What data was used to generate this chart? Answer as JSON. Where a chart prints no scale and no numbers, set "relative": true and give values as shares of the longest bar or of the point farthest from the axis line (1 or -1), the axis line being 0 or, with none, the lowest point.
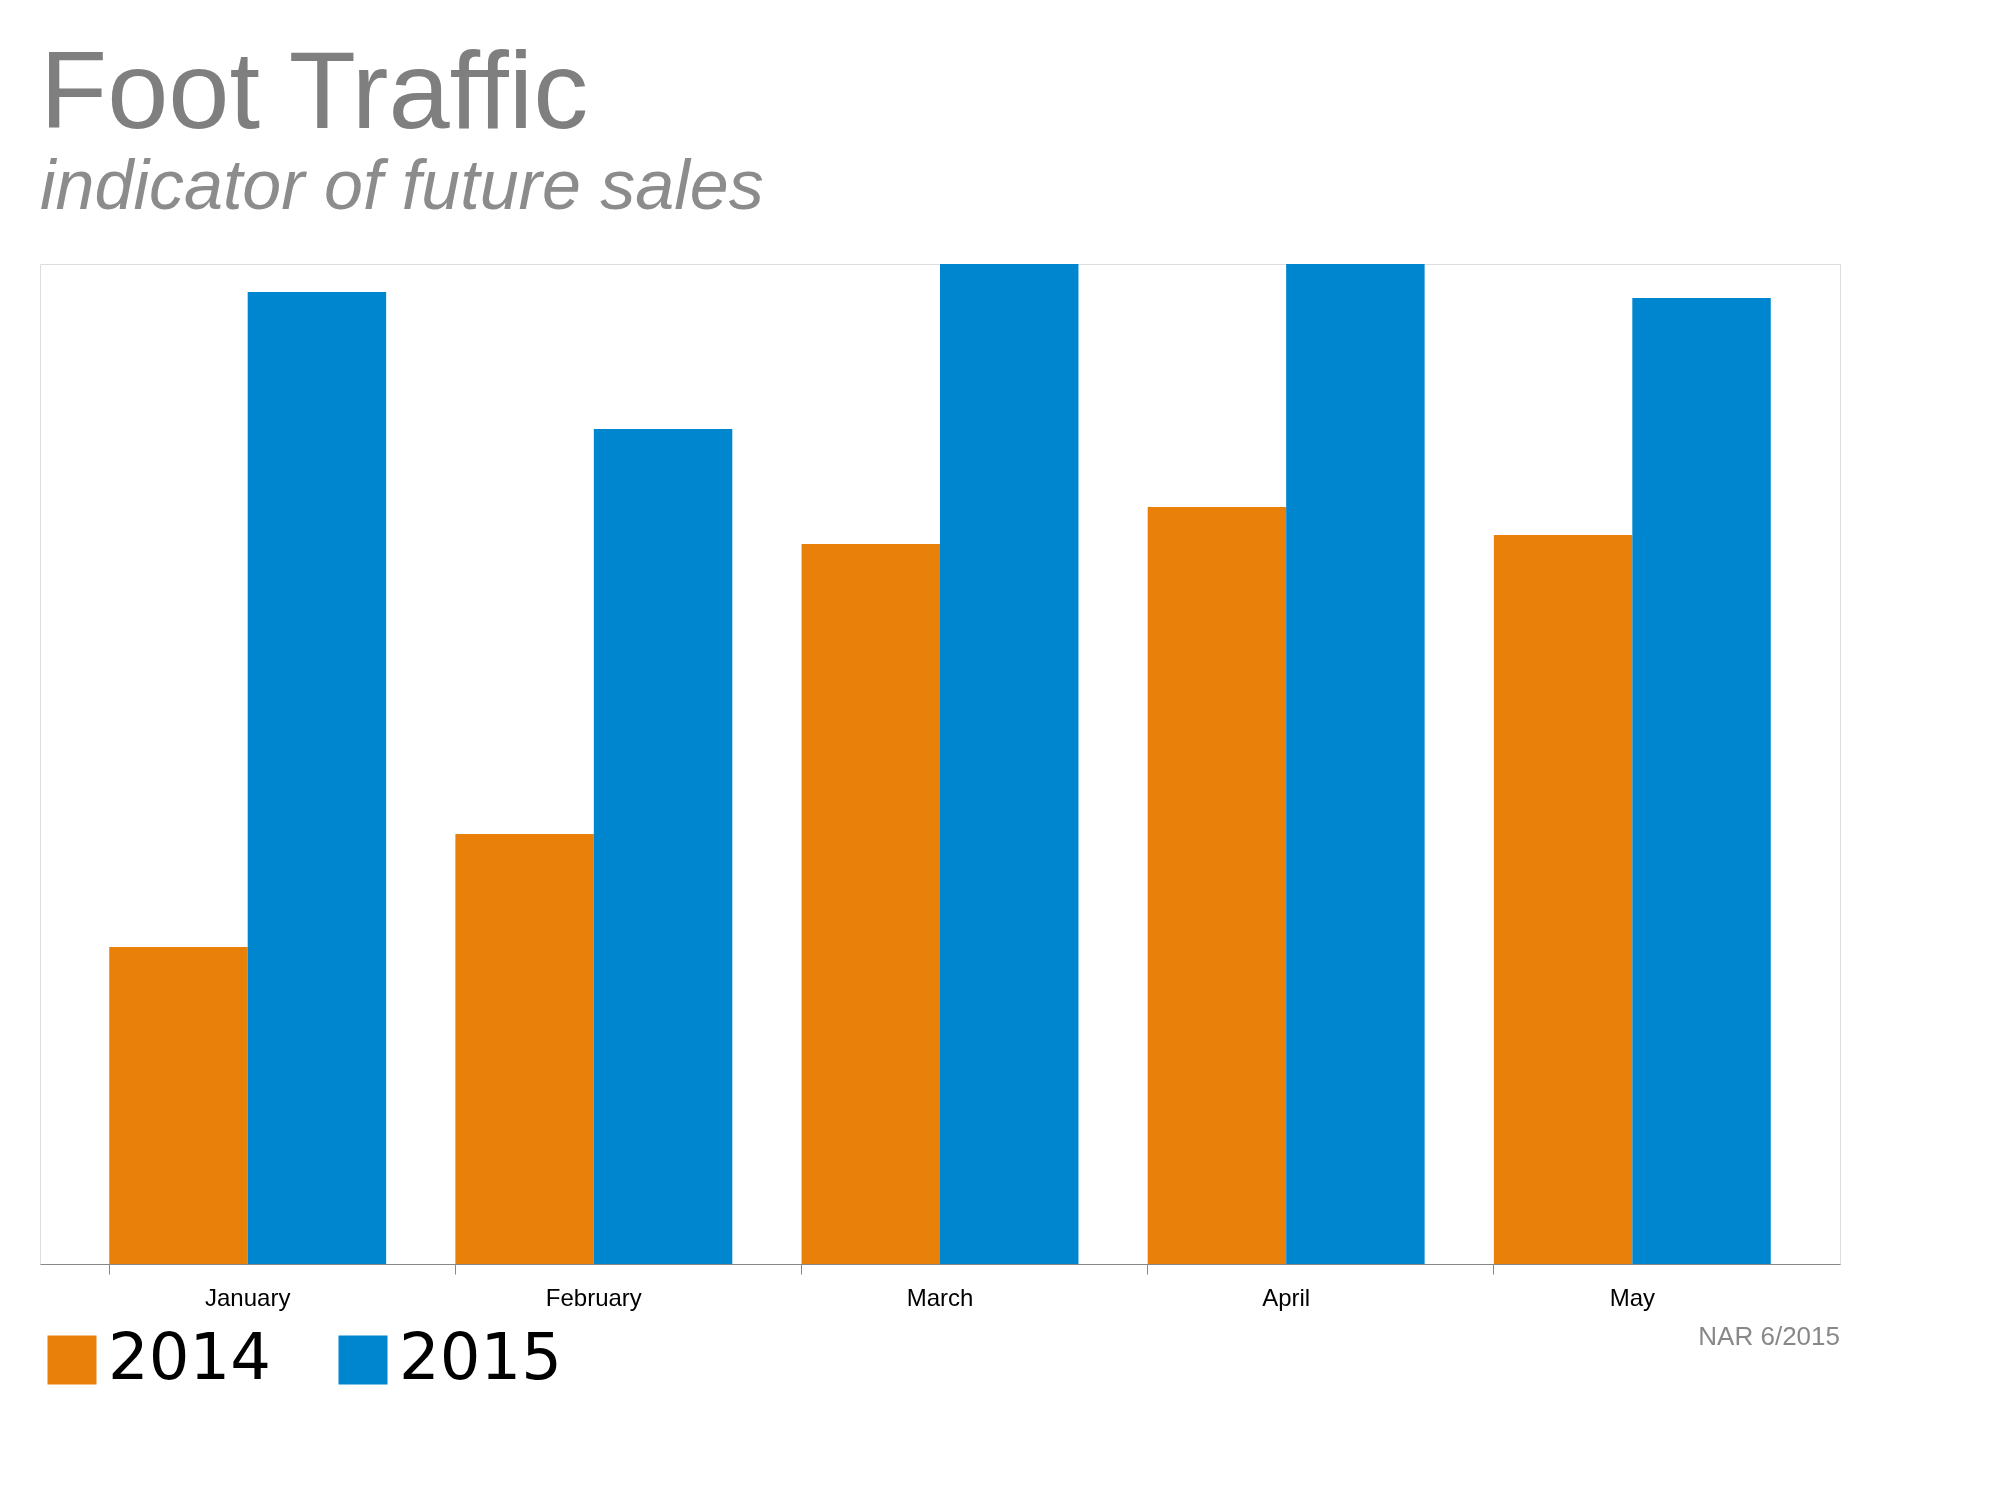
{
  "chart_data": {
    "type": "bar",
    "title": "Foot Traffic",
    "subtitle": "indicator of future sales",
    "relative": true,
    "categories": [
      "January",
      "February",
      "March",
      "April",
      "May"
    ],
    "series": [
      {
        "name": "2014",
        "color": "#e98009",
        "values": [
          0.317,
          0.43,
          0.72,
          0.757,
          0.729
        ]
      },
      {
        "name": "2015",
        "color": "#0086cf",
        "values": [
          0.972,
          0.835,
          1.0,
          1.0,
          0.966
        ]
      }
    ],
    "legend": "bottom",
    "annotations": [
      "NAR 6/2015"
    ]
  }
}
